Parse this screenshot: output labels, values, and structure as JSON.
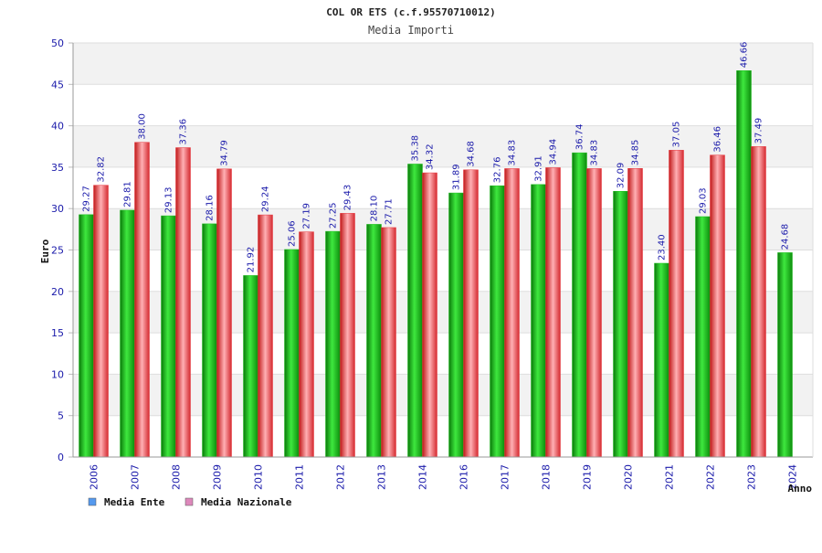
{
  "chart_data": {
    "type": "bar",
    "title": "COL OR ETS (c.f.95570710012)",
    "subtitle": "Media Importi",
    "xlabel": "Anno",
    "ylabel": "Euro",
    "ylim": [
      0,
      50
    ],
    "yticks": [
      0,
      5,
      10,
      15,
      20,
      25,
      30,
      35,
      40,
      45,
      50
    ],
    "grid": true,
    "legend_position": "bottom-left",
    "categories": [
      "2006",
      "2007",
      "2008",
      "2009",
      "2010",
      "2011",
      "2012",
      "2013",
      "2014",
      "2016",
      "2017",
      "2018",
      "2019",
      "2020",
      "2021",
      "2022",
      "2023",
      "2024"
    ],
    "series": [
      {
        "name": "Media Ente",
        "color": "#1fbf1f",
        "legend_color": "#5599ee",
        "values": [
          29.27,
          29.81,
          29.13,
          28.16,
          21.92,
          25.06,
          27.25,
          28.1,
          35.38,
          31.89,
          32.76,
          32.91,
          36.74,
          32.09,
          23.4,
          29.03,
          46.66,
          24.68
        ],
        "labels": [
          "29.27",
          "29.81",
          "29.13",
          "28.16",
          "21.92",
          "25.06",
          "27.25",
          "28.10",
          "35.38",
          "31.89",
          "32.76",
          "32.91",
          "36.74",
          "32.09",
          "23.40",
          "29.03",
          "46.66",
          "24.68"
        ]
      },
      {
        "name": "Media Nazionale",
        "color": "#e8343c",
        "legend_color": "#dd88bb",
        "values": [
          32.82,
          38.0,
          37.36,
          34.79,
          29.24,
          27.19,
          29.43,
          27.71,
          34.32,
          34.68,
          34.83,
          34.94,
          34.83,
          34.85,
          37.05,
          36.46,
          37.49,
          null
        ],
        "labels": [
          "32.82",
          "38.00",
          "37.36",
          "34.79",
          "29.24",
          "27.19",
          "29.43",
          "27.71",
          "34.32",
          "34.68",
          "34.83",
          "34.94",
          "34.83",
          "34.85",
          "37.05",
          "36.46",
          "37.49",
          null
        ]
      }
    ]
  }
}
